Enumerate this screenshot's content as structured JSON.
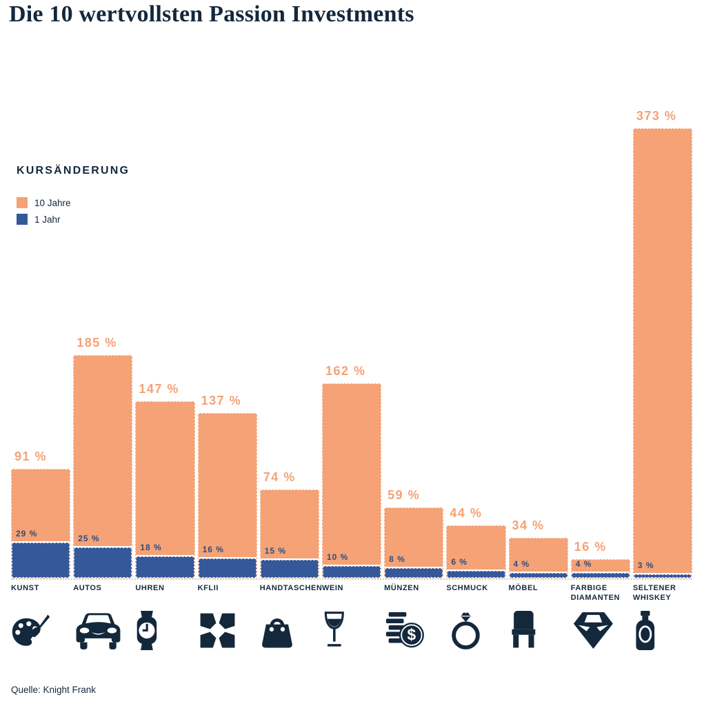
{
  "title": "Die 10 wertvollsten Passion Investments",
  "legend": {
    "heading": "KURSÄNDERUNG",
    "items": [
      {
        "label": "10 Jahre",
        "color": "#F4A276"
      },
      {
        "label": "1 Jahr",
        "color": "#35589A"
      }
    ]
  },
  "source": "Quelle: Knight Frank",
  "colors": {
    "orange": "#F4A276",
    "blue": "#35589A",
    "navy_text": "#14283C",
    "blue_label_text": "#2E4C7E"
  },
  "chart_data": {
    "type": "bar",
    "title": "Die 10 wertvollsten Passion Investments",
    "categories": [
      "KUNST",
      "AUTOS",
      "UHREN",
      "KFLII",
      "HANDTASCHEN",
      "WEIN",
      "MÜNZEN",
      "SCHMUCK",
      "MÖBEL",
      "FARBIGE DIAMANTEN",
      "SELTENER WHISKEY"
    ],
    "series": [
      {
        "name": "10 Jahre",
        "color": "#F4A276",
        "values": [
          91,
          185,
          147,
          137,
          74,
          162,
          59,
          44,
          34,
          16,
          373
        ]
      },
      {
        "name": "1 Jahr",
        "color": "#35589A",
        "values": [
          29,
          25,
          18,
          16,
          15,
          10,
          8,
          6,
          4,
          4,
          3
        ]
      }
    ],
    "value_suffix": " %",
    "xlabel": "",
    "ylabel": "",
    "ylim": [
      0,
      380
    ],
    "grid": false,
    "legend_position": "upper-left",
    "icons": [
      "palette-icon",
      "car-icon",
      "watch-icon",
      "kflii-icon",
      "handbag-icon",
      "wine-glass-icon",
      "coins-icon",
      "ring-icon",
      "chair-icon",
      "diamond-icon",
      "whiskey-bottle-icon"
    ]
  }
}
